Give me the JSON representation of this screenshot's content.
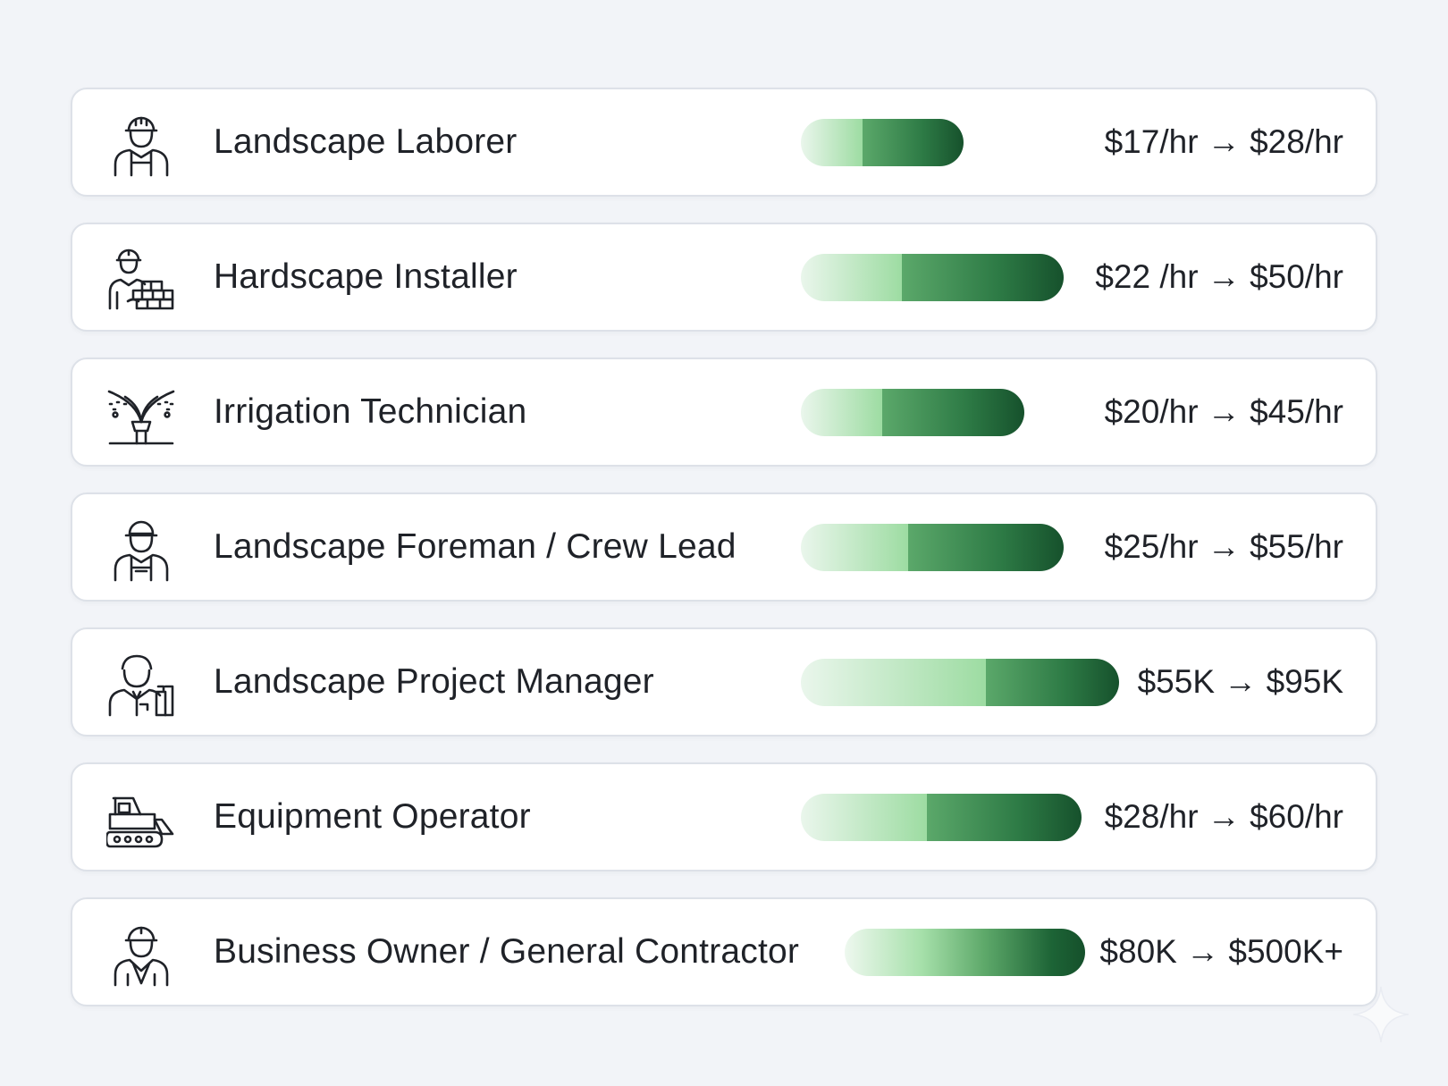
{
  "rows": [
    {
      "title": "Landscape Laborer",
      "range": "$17/hr → $28/hr",
      "icon": "hardhat-worker-icon",
      "bar": {
        "start": 0.0,
        "split": 0.375,
        "end": 1.0,
        "max_frac": 0.455
      }
    },
    {
      "title": "Hardscape Installer",
      "range": "$22 /hr → $50/hr",
      "icon": "mason-bricks-icon",
      "bar": {
        "start": 0.0,
        "split": 0.385,
        "end": 1.0,
        "max_frac": 0.735
      }
    },
    {
      "title": "Irrigation Technician",
      "range": "$20/hr → $45/hr",
      "icon": "sprinkler-icon",
      "bar": {
        "start": 0.0,
        "split": 0.365,
        "end": 1.0,
        "max_frac": 0.625
      }
    },
    {
      "title": "Landscape Foreman / Crew Lead",
      "range": "$25/hr → $55/hr",
      "icon": "foreman-cap-icon",
      "bar": {
        "start": 0.0,
        "split": 0.41,
        "end": 1.0,
        "max_frac": 0.735
      }
    },
    {
      "title": "Landscape Project Manager",
      "range": "$55K → $95K",
      "icon": "manager-blueprints-icon",
      "bar": {
        "start": 0.0,
        "split": 0.58,
        "end": 1.0,
        "max_frac": 0.89
      }
    },
    {
      "title": "Equipment Operator",
      "range": "$28/hr → $60/hr",
      "icon": "bulldozer-icon",
      "bar": {
        "start": 0.0,
        "split": 0.45,
        "end": 1.0,
        "max_frac": 0.78
      }
    },
    {
      "title": "Business Owner / General Contractor",
      "range": "$80K → $500K+",
      "icon": "contractor-suit-icon",
      "bar": {
        "start": 0.12,
        "split": null,
        "end": 1.0,
        "max_frac": 0.79
      }
    }
  ]
}
